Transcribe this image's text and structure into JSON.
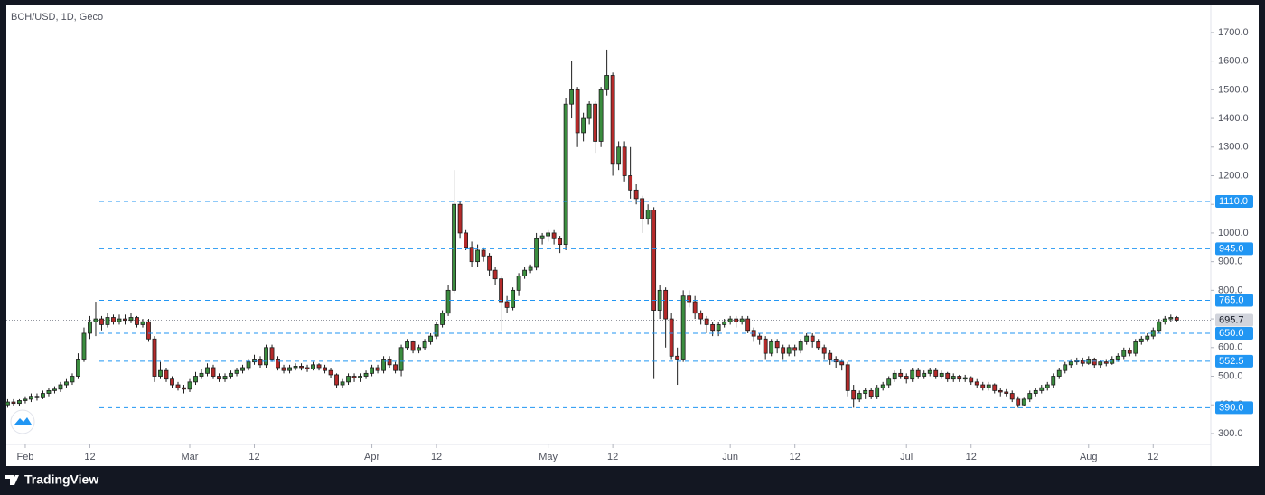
{
  "title": "BCH/USD, 1D, Geco",
  "brand": "TradingView",
  "chart_data": {
    "type": "candlestick",
    "up_color": "#3b8d3f",
    "down_color": "#b52a2a",
    "xlim": [
      -1.3,
      204.8
    ],
    "ylim": [
      262,
      1788
    ],
    "xticks": [
      {
        "value": 3,
        "label": "Feb"
      },
      {
        "value": 14,
        "label": "12"
      },
      {
        "value": 31,
        "label": "Mar"
      },
      {
        "value": 42,
        "label": "12"
      },
      {
        "value": 62,
        "label": "Apr"
      },
      {
        "value": 73,
        "label": "12"
      },
      {
        "value": 92,
        "label": "May"
      },
      {
        "value": 103,
        "label": "12"
      },
      {
        "value": 123,
        "label": "Jun"
      },
      {
        "value": 134,
        "label": "12"
      },
      {
        "value": 153,
        "label": "Jul"
      },
      {
        "value": 164,
        "label": "12"
      },
      {
        "value": 184,
        "label": "Aug"
      },
      {
        "value": 195,
        "label": "12"
      }
    ],
    "yticks": [
      {
        "value": 300,
        "label": "300.0"
      },
      {
        "value": 400,
        "label": "400.0"
      },
      {
        "value": 500,
        "label": "500.0"
      },
      {
        "value": 600,
        "label": "600.0"
      },
      {
        "value": 700,
        "label": "700.0"
      },
      {
        "value": 800,
        "label": "800.0"
      },
      {
        "value": 900,
        "label": "900.0"
      },
      {
        "value": 1000,
        "label": "1000.0"
      },
      {
        "value": 1100,
        "label": "1100.0"
      },
      {
        "value": 1200,
        "label": "1200.0"
      },
      {
        "value": 1300,
        "label": "1300.0"
      },
      {
        "value": 1400,
        "label": "1400.0"
      },
      {
        "value": 1500,
        "label": "1500.0"
      },
      {
        "value": 1600,
        "label": "1600.0"
      },
      {
        "value": 1700,
        "label": "1700.0"
      }
    ],
    "levels": [
      {
        "value": 1110,
        "label": "1110.0"
      },
      {
        "value": 945,
        "label": "945.0"
      },
      {
        "value": 765,
        "label": "765.0"
      },
      {
        "value": 650,
        "label": "650.0"
      },
      {
        "value": 552.5,
        "label": "552.5"
      },
      {
        "value": 390,
        "label": "390.0"
      }
    ],
    "level_color": "#2196f3",
    "last_price": {
      "value": 695.7,
      "label": "695.7"
    },
    "open": [
      400,
      410,
      405,
      415,
      420,
      430,
      425,
      440,
      450,
      455,
      470,
      480,
      500,
      560,
      650,
      690,
      700,
      680,
      705,
      690,
      700,
      695,
      705,
      680,
      690,
      630,
      500,
      520,
      490,
      470,
      460,
      455,
      480,
      500,
      510,
      530,
      500,
      490,
      500,
      510,
      520,
      530,
      550,
      560,
      540,
      600,
      560,
      530,
      520,
      530,
      535,
      530,
      525,
      540,
      530,
      520,
      505,
      470,
      480,
      500,
      495,
      500,
      510,
      530,
      520,
      560,
      540,
      520,
      600,
      620,
      590,
      600,
      620,
      640,
      680,
      720,
      800,
      1100,
      1000,
      950,
      900,
      940,
      920,
      870,
      840,
      760,
      740,
      800,
      850,
      870,
      880,
      980,
      990,
      1000,
      980,
      960,
      1450,
      1500,
      1350,
      1400,
      1450,
      1320,
      1500,
      1550,
      1240,
      1300,
      1200,
      1150,
      1120,
      1050,
      1080,
      730,
      800,
      700,
      570,
      560,
      780,
      760,
      720,
      700,
      680,
      660,
      680,
      690,
      700,
      690,
      700,
      660,
      640,
      630,
      580,
      620,
      600,
      580,
      600,
      590,
      620,
      640,
      620,
      600,
      580,
      560,
      550,
      540,
      450,
      420,
      440,
      450,
      430,
      460,
      470,
      490,
      510,
      500,
      490,
      520,
      500,
      510,
      520,
      500,
      510,
      490,
      500,
      490,
      495,
      480,
      470,
      460,
      470,
      450,
      445,
      440,
      420,
      400,
      420,
      440,
      450,
      460,
      470,
      500,
      520,
      540,
      550,
      555,
      545,
      560,
      540,
      550,
      545,
      560,
      570,
      590,
      580,
      620,
      630,
      640,
      660,
      690,
      700,
      705
    ],
    "high": [
      420,
      420,
      420,
      430,
      440,
      440,
      450,
      460,
      465,
      480,
      490,
      510,
      580,
      670,
      710,
      760,
      710,
      720,
      715,
      715,
      715,
      720,
      710,
      700,
      700,
      640,
      550,
      530,
      500,
      480,
      470,
      490,
      515,
      525,
      545,
      540,
      510,
      510,
      520,
      530,
      540,
      560,
      575,
      570,
      610,
      610,
      570,
      540,
      540,
      545,
      545,
      540,
      550,
      545,
      540,
      530,
      510,
      490,
      510,
      510,
      510,
      520,
      540,
      540,
      570,
      570,
      550,
      610,
      630,
      625,
      610,
      630,
      650,
      690,
      730,
      820,
      1220,
      1110,
      1010,
      970,
      960,
      950,
      930,
      880,
      850,
      780,
      810,
      860,
      880,
      890,
      1000,
      1000,
      1010,
      1010,
      990,
      1470,
      1600,
      1510,
      1420,
      1460,
      1460,
      1510,
      1640,
      1560,
      1320,
      1320,
      1300,
      1170,
      1130,
      1100,
      1090,
      820,
      810,
      720,
      600,
      800,
      800,
      780,
      730,
      710,
      690,
      690,
      700,
      710,
      710,
      710,
      710,
      670,
      650,
      640,
      630,
      630,
      610,
      610,
      610,
      630,
      650,
      650,
      630,
      610,
      590,
      570,
      560,
      550,
      470,
      450,
      460,
      460,
      470,
      480,
      500,
      520,
      525,
      510,
      530,
      530,
      520,
      530,
      530,
      520,
      515,
      510,
      505,
      505,
      500,
      490,
      480,
      480,
      475,
      460,
      455,
      450,
      430,
      425,
      450,
      460,
      470,
      480,
      510,
      530,
      550,
      560,
      565,
      565,
      570,
      565,
      555,
      560,
      570,
      580,
      600,
      600,
      630,
      640,
      650,
      670,
      700,
      710,
      715,
      710
    ],
    "low": [
      390,
      395,
      395,
      405,
      410,
      415,
      420,
      430,
      440,
      445,
      460,
      470,
      490,
      550,
      630,
      640,
      660,
      670,
      680,
      680,
      680,
      685,
      670,
      670,
      620,
      480,
      490,
      480,
      460,
      450,
      440,
      445,
      470,
      490,
      500,
      490,
      480,
      480,
      490,
      500,
      510,
      520,
      540,
      530,
      530,
      550,
      520,
      510,
      510,
      520,
      520,
      515,
      520,
      520,
      510,
      495,
      460,
      460,
      470,
      480,
      480,
      490,
      500,
      510,
      510,
      530,
      510,
      500,
      590,
      580,
      580,
      590,
      610,
      630,
      670,
      710,
      790,
      980,
      940,
      880,
      880,
      900,
      850,
      820,
      660,
      720,
      730,
      780,
      840,
      860,
      870,
      960,
      970,
      960,
      930,
      940,
      1400,
      1300,
      1320,
      1380,
      1280,
      1300,
      1480,
      1200,
      1220,
      1180,
      1120,
      1100,
      1000,
      1030,
      490,
      700,
      600,
      560,
      470,
      550,
      740,
      700,
      680,
      650,
      640,
      640,
      670,
      680,
      670,
      680,
      650,
      620,
      610,
      560,
      570,
      580,
      560,
      570,
      570,
      580,
      610,
      600,
      590,
      560,
      540,
      530,
      520,
      430,
      390,
      410,
      420,
      420,
      420,
      450,
      460,
      480,
      490,
      475,
      480,
      490,
      490,
      500,
      490,
      490,
      480,
      480,
      480,
      480,
      470,
      460,
      450,
      450,
      440,
      430,
      430,
      410,
      390,
      395,
      410,
      430,
      440,
      450,
      460,
      490,
      510,
      530,
      540,
      535,
      540,
      530,
      530,
      535,
      540,
      550,
      560,
      570,
      570,
      610,
      620,
      630,
      650,
      680,
      690,
      690
    ],
    "close": [
      410,
      405,
      415,
      420,
      430,
      425,
      440,
      450,
      455,
      470,
      480,
      500,
      560,
      650,
      690,
      700,
      680,
      705,
      690,
      700,
      695,
      705,
      680,
      690,
      630,
      500,
      520,
      490,
      470,
      460,
      455,
      480,
      500,
      510,
      530,
      500,
      490,
      500,
      510,
      520,
      530,
      550,
      560,
      540,
      600,
      560,
      530,
      520,
      530,
      535,
      530,
      525,
      540,
      530,
      520,
      505,
      470,
      480,
      500,
      495,
      500,
      510,
      530,
      520,
      560,
      540,
      520,
      600,
      620,
      590,
      600,
      620,
      640,
      680,
      720,
      800,
      1100,
      1000,
      950,
      900,
      940,
      920,
      870,
      840,
      760,
      740,
      800,
      850,
      870,
      880,
      980,
      990,
      1000,
      980,
      960,
      1450,
      1500,
      1350,
      1400,
      1450,
      1320,
      1500,
      1550,
      1240,
      1300,
      1200,
      1150,
      1120,
      1050,
      1080,
      730,
      800,
      700,
      570,
      560,
      780,
      760,
      720,
      700,
      680,
      660,
      680,
      690,
      700,
      690,
      700,
      660,
      640,
      630,
      580,
      620,
      600,
      580,
      600,
      590,
      620,
      640,
      620,
      600,
      580,
      560,
      550,
      540,
      450,
      420,
      440,
      450,
      430,
      460,
      470,
      490,
      510,
      500,
      490,
      520,
      500,
      510,
      520,
      500,
      510,
      490,
      500,
      490,
      495,
      480,
      470,
      460,
      470,
      450,
      445,
      440,
      420,
      400,
      420,
      440,
      450,
      460,
      470,
      500,
      520,
      540,
      550,
      555,
      545,
      560,
      540,
      550,
      545,
      560,
      570,
      590,
      580,
      620,
      630,
      640,
      660,
      690,
      700,
      705,
      695.7
    ]
  }
}
